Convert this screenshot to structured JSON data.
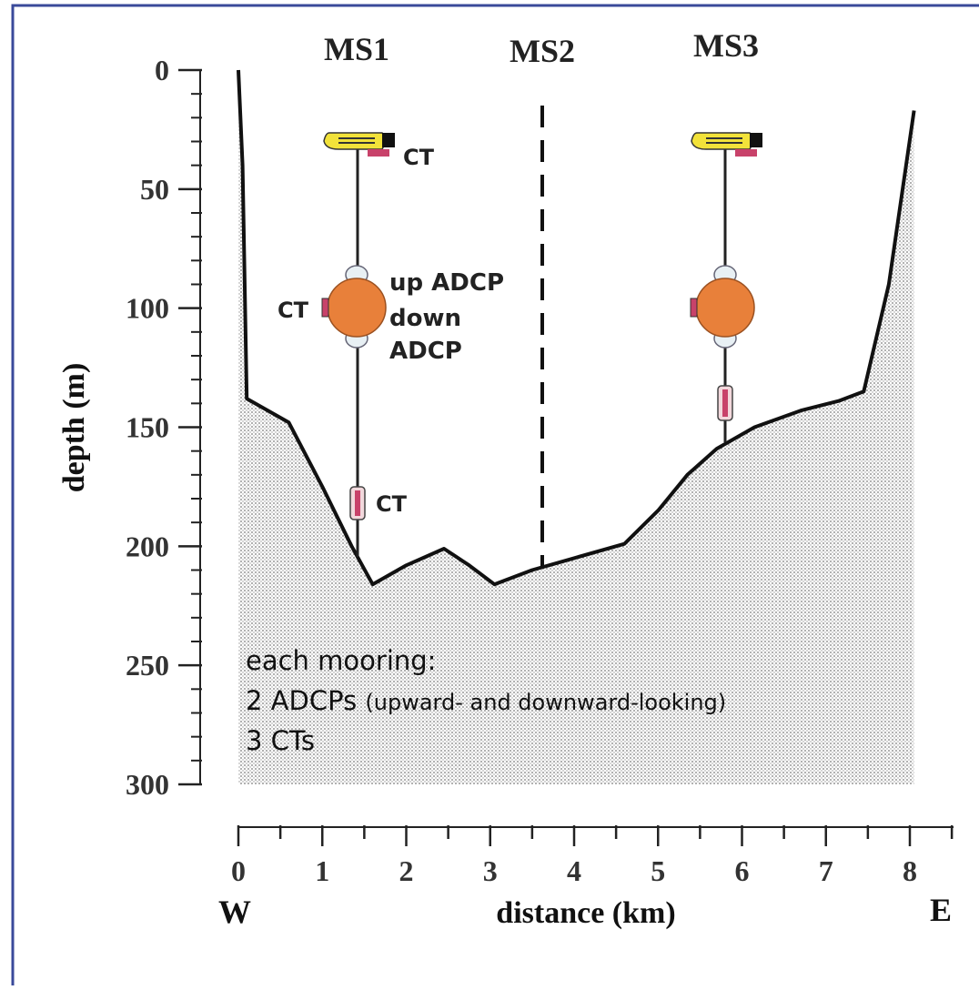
{
  "moorings": {
    "ms1": "MS1",
    "ms2": "MS2",
    "ms3": "MS3"
  },
  "axes": {
    "y_label": "depth  (m)",
    "x_label": "distance  (km)",
    "y_ticks": [
      "0",
      "50",
      "100",
      "150",
      "200",
      "250",
      "300"
    ],
    "x_ticks": [
      "0",
      "1",
      "2",
      "3",
      "4",
      "5",
      "6",
      "7",
      "8"
    ],
    "west": "W",
    "east": "E"
  },
  "instruments": {
    "ct_top": "CT",
    "ct_mid": "CT",
    "ct_bottom": "CT",
    "up_adcp": "up ADCP",
    "down": "down",
    "adcp": "ADCP"
  },
  "note": {
    "line1": "each mooring:",
    "line2_main": "2 ADCPs",
    "line2_small": "(upward- and downward-looking)",
    "line3": "3 CTs"
  },
  "colors": {
    "frame": "#3a4a9a",
    "float": "#f2e23a",
    "buoy": "#e8803a",
    "ct_sensor": "#c8426a",
    "seabed_dots": "#777777"
  },
  "chart_data": {
    "type": "area",
    "xlabel": "distance  (km)",
    "ylabel": "depth  (m)",
    "xlim": [
      0,
      8
    ],
    "ylim": [
      300,
      0
    ],
    "bathymetry": {
      "x": [
        0.0,
        0.05,
        0.1,
        0.6,
        1.0,
        1.35,
        1.6,
        2.0,
        2.45,
        2.75,
        3.05,
        3.5,
        4.0,
        4.6,
        5.0,
        5.35,
        5.7,
        6.15,
        6.7,
        7.15,
        7.45,
        7.75,
        8.05
      ],
      "depth": [
        0,
        40,
        138,
        148,
        175,
        200,
        216,
        208,
        201,
        208,
        216,
        210,
        205,
        199,
        185,
        170,
        159,
        150,
        143,
        139,
        135,
        90,
        17
      ]
    },
    "mooring_positions_km": {
      "MS1": 1.45,
      "MS2": 3.65,
      "MS3": 5.9
    }
  }
}
